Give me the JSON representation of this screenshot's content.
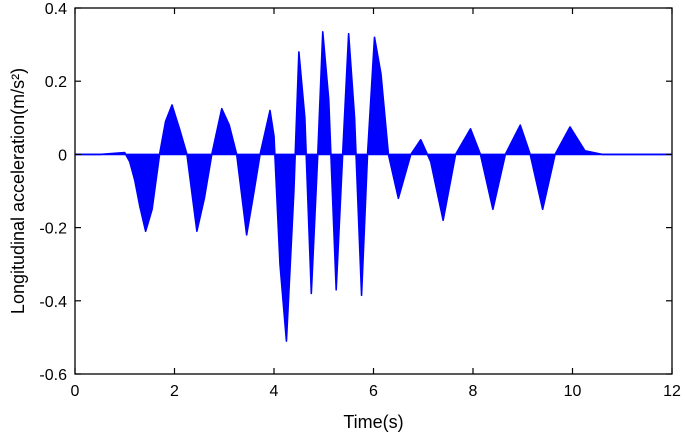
{
  "chart_data": {
    "type": "line",
    "title": "",
    "xlabel": "Time(s)",
    "ylabel": "Longitudinal acceleration(m/s²)",
    "xlim": [
      0,
      12
    ],
    "ylim": [
      -0.6,
      0.4
    ],
    "x_ticks": [
      0,
      2,
      4,
      6,
      8,
      10,
      12
    ],
    "y_ticks": [
      -0.6,
      -0.4,
      -0.2,
      0,
      0.2,
      0.4
    ],
    "x_tick_labels": [
      "0",
      "2",
      "4",
      "6",
      "8",
      "10",
      "12"
    ],
    "y_tick_labels": [
      "-0.6",
      "-0.4",
      "-0.2",
      "0",
      "0.2",
      "0.4"
    ],
    "grid": false,
    "series": [
      {
        "color": "#0000ff",
        "fill_to_zero": true,
        "x": [
          0,
          0.5,
          1.0,
          1.1,
          1.2,
          1.3,
          1.42,
          1.55,
          1.7,
          1.82,
          1.95,
          2.1,
          2.25,
          2.45,
          2.6,
          2.75,
          2.95,
          3.1,
          3.25,
          3.45,
          3.6,
          3.72,
          3.92,
          4.0,
          4.12,
          4.25,
          4.4,
          4.5,
          4.62,
          4.75,
          4.88,
          4.98,
          5.1,
          5.25,
          5.38,
          5.5,
          5.62,
          5.76,
          5.88,
          6.02,
          6.15,
          6.3,
          6.5,
          6.75,
          6.95,
          7.15,
          7.4,
          7.65,
          7.95,
          8.15,
          8.4,
          8.65,
          8.95,
          9.15,
          9.4,
          9.65,
          9.95,
          10.25,
          10.6,
          11.0,
          11.5,
          12.0
        ],
        "y": [
          0,
          0,
          0.005,
          -0.02,
          -0.07,
          -0.14,
          -0.21,
          -0.15,
          0.0,
          0.09,
          0.135,
          0.07,
          0.0,
          -0.21,
          -0.12,
          0.0,
          0.125,
          0.08,
          0.0,
          -0.22,
          -0.1,
          0.0,
          0.12,
          0.05,
          -0.3,
          -0.51,
          -0.1,
          0.28,
          0.1,
          -0.38,
          0.0,
          0.335,
          0.15,
          -0.37,
          0.0,
          0.33,
          0.1,
          -0.385,
          0.0,
          0.32,
          0.22,
          0.0,
          -0.12,
          0.0,
          0.04,
          -0.02,
          -0.18,
          0.0,
          0.07,
          0.0,
          -0.15,
          0.0,
          0.08,
          0.0,
          -0.15,
          0.0,
          0.075,
          0.01,
          0.0,
          0.0,
          0.0,
          0.0
        ]
      }
    ]
  }
}
